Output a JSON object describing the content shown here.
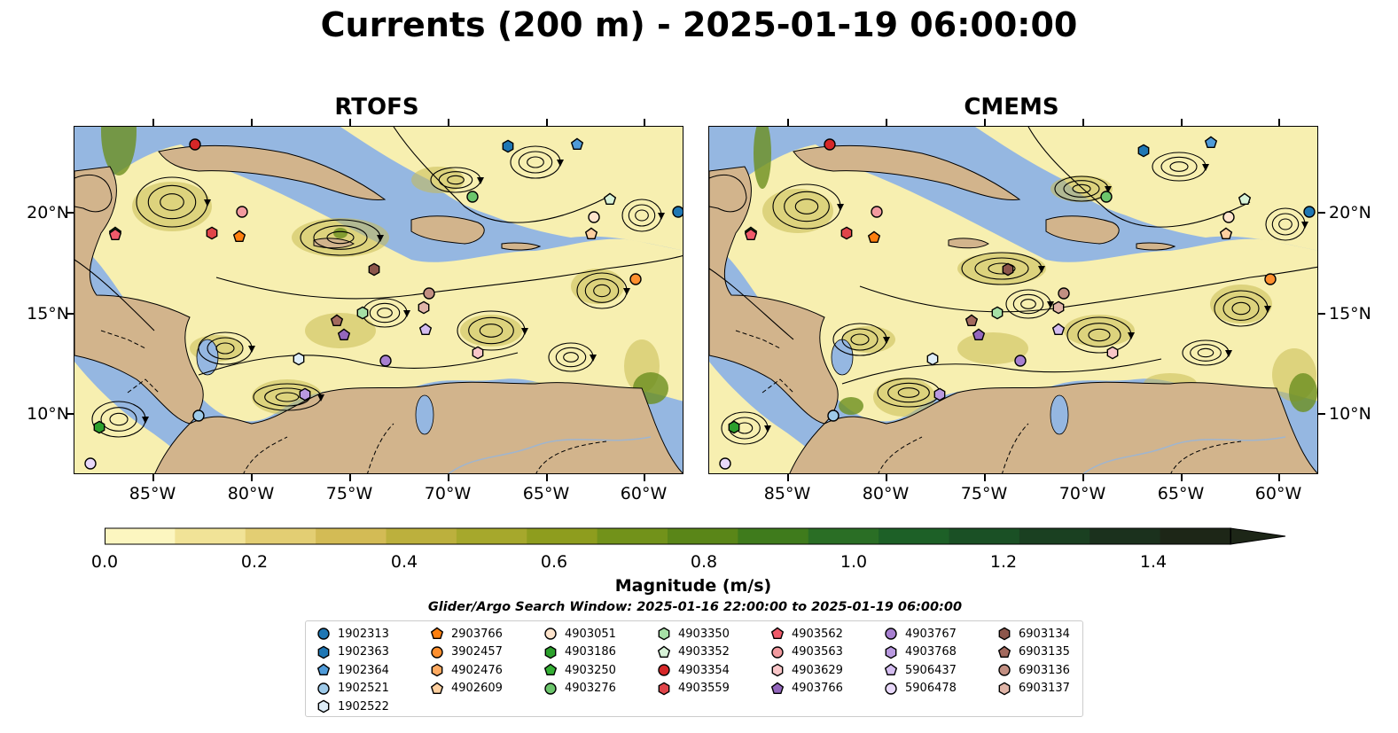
{
  "title": "Currents (200 m) - 2025-01-19 06:00:00",
  "panels": [
    {
      "title": "RTOFS"
    },
    {
      "title": "CMEMS"
    }
  ],
  "axes": {
    "y_ticks": [
      "20°N",
      "15°N",
      "10°N"
    ],
    "x_ticks": [
      "85°W",
      "80°W",
      "75°W",
      "70°W",
      "65°W",
      "60°W"
    ]
  },
  "colorbar": {
    "label": "Magnitude (m/s)",
    "ticks": [
      "0.0",
      "0.2",
      "0.4",
      "0.6",
      "0.8",
      "1.0",
      "1.2",
      "1.4"
    ],
    "range": [
      0.0,
      1.5
    ],
    "extend": "max",
    "colors": [
      "#fcf6c0",
      "#f1e397",
      "#e3ce73",
      "#d3bb55",
      "#bcb03d",
      "#a6a82c",
      "#8e9d1e",
      "#72921a",
      "#5a8618",
      "#3f7b1c",
      "#2a6e25",
      "#1d6027",
      "#1a5025",
      "#1a4021",
      "#1b311d",
      "#1d2617"
    ]
  },
  "map_colors": {
    "ocean": "#95b7e1",
    "land": "#d2b48c",
    "current_low": "#f7efb0",
    "current_mid": "#c9bc54",
    "current_high": "#6c8f1f",
    "streamline": "#000000"
  },
  "search_window": "Glider/Argo Search Window: 2025-01-16 22:00:00 to 2025-01-19 06:00:00",
  "legend": [
    {
      "id": "1902313",
      "color": "#1f77b4",
      "shape": "circle"
    },
    {
      "id": "1902363",
      "color": "#1f77b4",
      "shape": "hexagon"
    },
    {
      "id": "1902364",
      "color": "#4f9bd9",
      "shape": "pentagon"
    },
    {
      "id": "1902521",
      "color": "#9ecae9",
      "shape": "circle"
    },
    {
      "id": "1902522",
      "color": "#deedf7",
      "shape": "hexagon"
    },
    {
      "id": "2903766",
      "color": "#ff7f0e",
      "shape": "pentagon"
    },
    {
      "id": "3902457",
      "color": "#ff8f2e",
      "shape": "circle"
    },
    {
      "id": "4902476",
      "color": "#ffaa60",
      "shape": "hexagon"
    },
    {
      "id": "4902609",
      "color": "#ffd0a0",
      "shape": "pentagon"
    },
    {
      "id": "4903051",
      "color": "#ffe4cc",
      "shape": "circle"
    },
    {
      "id": "4903186",
      "color": "#2ca02c",
      "shape": "hexagon"
    },
    {
      "id": "4903250",
      "color": "#35b035",
      "shape": "pentagon"
    },
    {
      "id": "4903276",
      "color": "#6cc66c",
      "shape": "circle"
    },
    {
      "id": "4903350",
      "color": "#a6e0a6",
      "shape": "hexagon"
    },
    {
      "id": "4903352",
      "color": "#d8f3d8",
      "shape": "pentagon"
    },
    {
      "id": "4903354",
      "color": "#d62728",
      "shape": "circle"
    },
    {
      "id": "4903559",
      "color": "#e0454a",
      "shape": "hexagon"
    },
    {
      "id": "4903562",
      "color": "#f05a6a",
      "shape": "pentagon"
    },
    {
      "id": "4903563",
      "color": "#f29a9f",
      "shape": "circle"
    },
    {
      "id": "4903629",
      "color": "#f9c6c8",
      "shape": "hexagon"
    },
    {
      "id": "4903766",
      "color": "#9467bd",
      "shape": "pentagon"
    },
    {
      "id": "4903767",
      "color": "#a77fd0",
      "shape": "circle"
    },
    {
      "id": "4903768",
      "color": "#b999e0",
      "shape": "hexagon"
    },
    {
      "id": "5906437",
      "color": "#d4bdf0",
      "shape": "pentagon"
    },
    {
      "id": "5906478",
      "color": "#e8d8fa",
      "shape": "circle"
    },
    {
      "id": "6903134",
      "color": "#8c564b",
      "shape": "hexagon"
    },
    {
      "id": "6903135",
      "color": "#a36a5e",
      "shape": "pentagon"
    },
    {
      "id": "6903136",
      "color": "#c28f82",
      "shape": "circle"
    },
    {
      "id": "6903137",
      "color": "#e0b5a8",
      "shape": "hexagon"
    }
  ]
}
